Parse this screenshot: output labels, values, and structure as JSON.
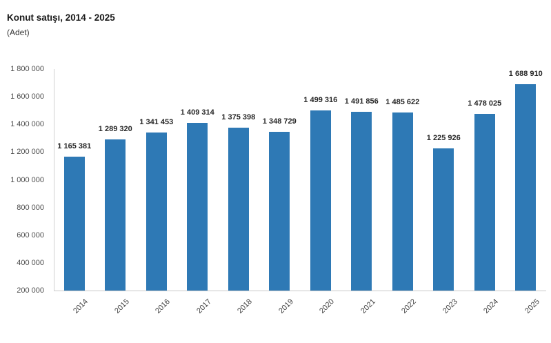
{
  "header": {
    "title": "Konut satışı, 2014 - 2025",
    "subtitle": "(Adet)"
  },
  "chart_data": {
    "type": "bar",
    "title": "Konut satışı, 2014 - 2025",
    "subtitle": "(Adet)",
    "categories": [
      "2014",
      "2015",
      "2016",
      "2017",
      "2018",
      "2019",
      "2020",
      "2021",
      "2022",
      "2023",
      "2024",
      "2025"
    ],
    "values": [
      1165381,
      1289320,
      1341453,
      1409314,
      1375398,
      1348729,
      1499316,
      1491856,
      1485622,
      1225926,
      1478025,
      1688910
    ],
    "value_labels": [
      "1 165 381",
      "1 289 320",
      "1 341 453",
      "1 409 314",
      "1 375 398",
      "1 348 729",
      "1 499 316",
      "1 491 856",
      "1 485 622",
      "1 225 926",
      "1 478 025",
      "1 688 910"
    ],
    "xlabel": "",
    "ylabel": "",
    "ylim": [
      200000,
      1800000
    ],
    "ytick_step": 200000,
    "ytick_labels": [
      "200 000",
      "400 000",
      "600 000",
      "800 000",
      "1 000 000",
      "1 200 000",
      "1 400 000",
      "1 600 000",
      "1 800 000"
    ],
    "grid": false,
    "legend": "none",
    "bar_color": "#2e79b5",
    "axis_line_color": "#d0d0d0",
    "xlabel_rotation_deg": -45
  }
}
